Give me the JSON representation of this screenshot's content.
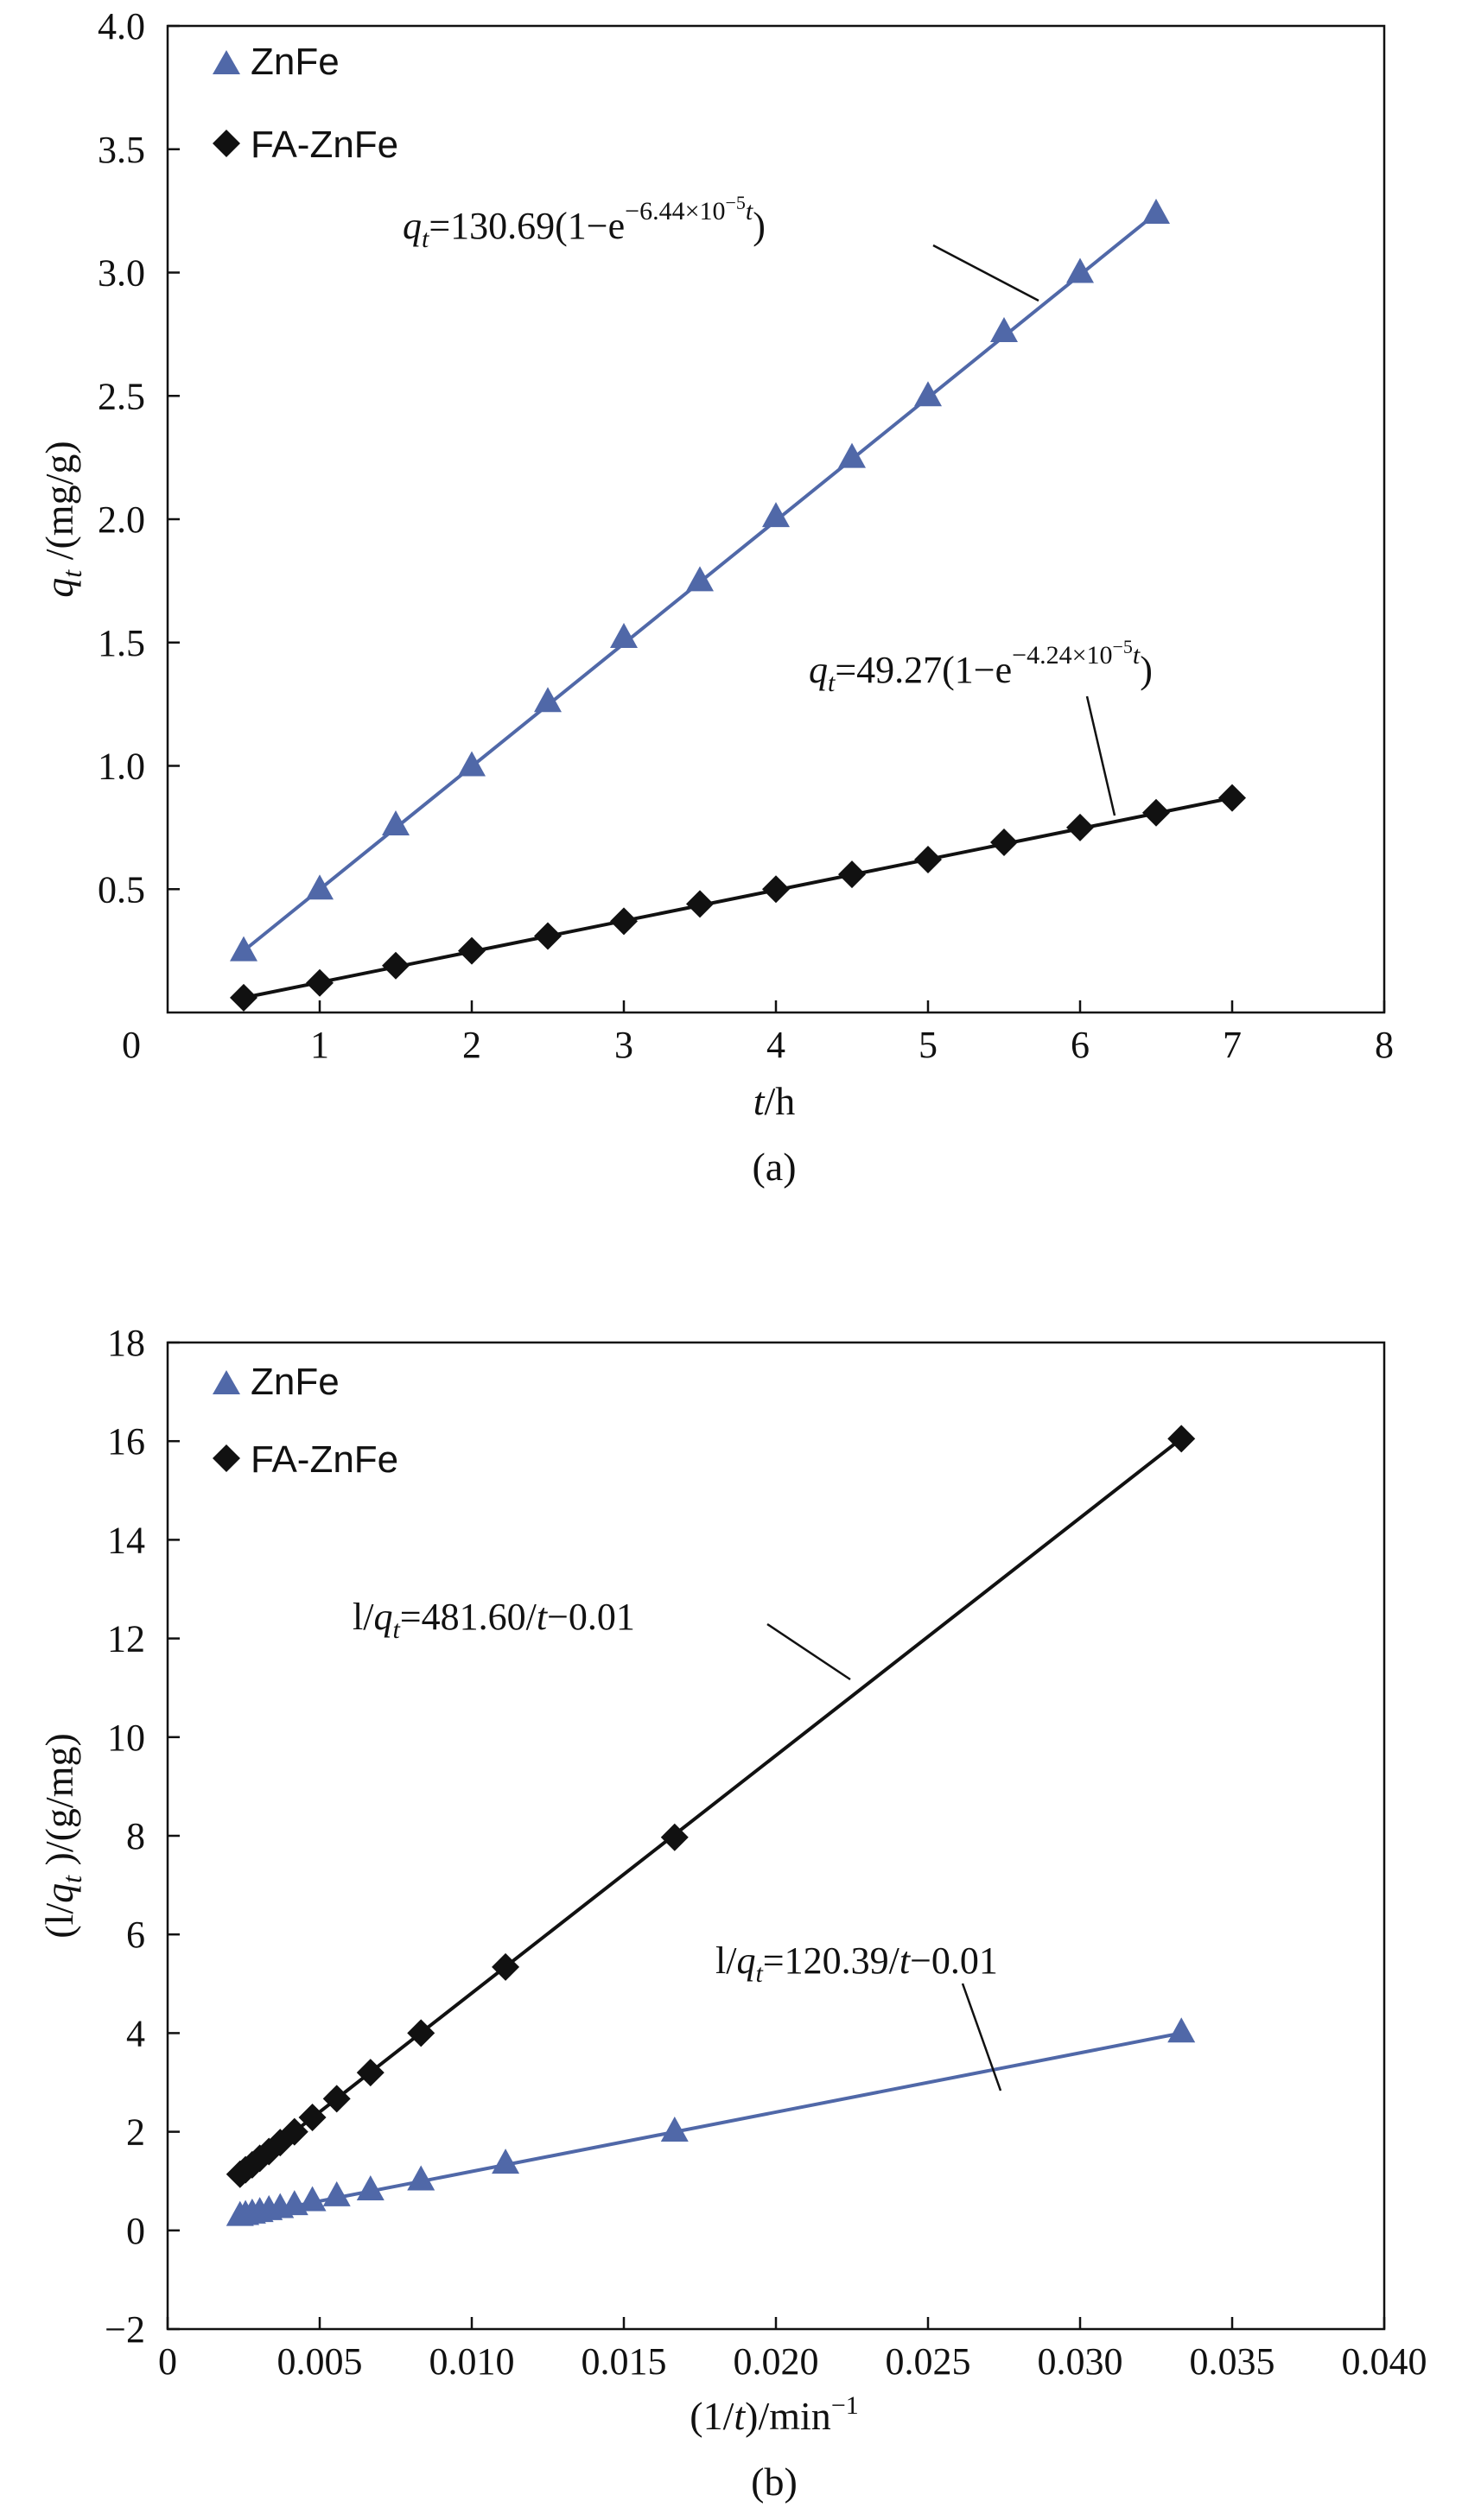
{
  "colors": {
    "znfe": "#5068a8",
    "fa_znfe": "#111111"
  },
  "chart_data": [
    {
      "type": "scatter",
      "panel_label": "(a)",
      "xlabel_italic": "t",
      "xlabel_rest": "/h",
      "ylabel_italic": "q",
      "ylabel_sub": "t",
      "ylabel_rest": " /(mg/g)",
      "xlim": [
        0,
        8
      ],
      "ylim": [
        0,
        4.0
      ],
      "xticks": [
        {
          "v": 1,
          "label": "1"
        },
        {
          "v": 2,
          "label": "2"
        },
        {
          "v": 3,
          "label": "3"
        },
        {
          "v": 4,
          "label": "4"
        },
        {
          "v": 5,
          "label": "5"
        },
        {
          "v": 6,
          "label": "6"
        },
        {
          "v": 7,
          "label": "7"
        },
        {
          "v": 8,
          "label": "8"
        }
      ],
      "yticks": [
        {
          "v": 0.5,
          "label": "0.5"
        },
        {
          "v": 1.0,
          "label": "1.0"
        },
        {
          "v": 1.5,
          "label": "1.5"
        },
        {
          "v": 2.0,
          "label": "2.0"
        },
        {
          "v": 2.5,
          "label": "2.5"
        },
        {
          "v": 3.0,
          "label": "3.0"
        },
        {
          "v": 3.5,
          "label": "3.5"
        },
        {
          "v": 4.0,
          "label": "4.0"
        }
      ],
      "origin_label": "0",
      "legend_position": "top-left",
      "series": [
        {
          "name": "ZnFe",
          "marker": "triangle",
          "color": "#5068a8",
          "x": [
            0.5,
            1,
            1.5,
            2,
            2.5,
            3,
            3.5,
            4,
            4.5,
            5,
            5.5,
            6,
            6.5
          ],
          "y": [
            0.25,
            0.5,
            0.76,
            1.0,
            1.26,
            1.52,
            1.75,
            2.01,
            2.25,
            2.5,
            2.76,
            3.0,
            3.24
          ],
          "fit": [
            [
              0.5,
              0.25
            ],
            [
              6.5,
              3.24
            ]
          ]
        },
        {
          "name": "FA-ZnFe",
          "marker": "diamond",
          "color": "#111111",
          "x": [
            0.5,
            1,
            1.5,
            2,
            2.5,
            3,
            3.5,
            4,
            4.5,
            5,
            5.5,
            6,
            6.5,
            7
          ],
          "y": [
            0.06,
            0.12,
            0.19,
            0.25,
            0.31,
            0.37,
            0.44,
            0.5,
            0.56,
            0.62,
            0.69,
            0.75,
            0.81,
            0.87
          ],
          "fit": [
            [
              0.5,
              0.06
            ],
            [
              7,
              0.87
            ]
          ]
        }
      ],
      "annotations": [
        {
          "italic_var": "q",
          "sub": "t",
          "main": "=130.69(1−e",
          "sup": "−6.44×10",
          "supsup": "−5",
          "sup_tail": "t",
          "close": ")"
        },
        {
          "italic_var": "q",
          "sub": "t",
          "main": "=49.27(1−e",
          "sup": "−4.24×10",
          "supsup": "−5",
          "sup_tail": "t",
          "close": ")"
        }
      ]
    },
    {
      "type": "scatter",
      "panel_label": "(b)",
      "xlabel_pre": "(1/",
      "xlabel_italic": "t",
      "xlabel_rest": ")/min",
      "xlabel_sup": "−1",
      "ylabel_pre": "(l/",
      "ylabel_italic": "q",
      "ylabel_sub": "t",
      "ylabel_rest": " )/(g/mg)",
      "xlim": [
        0,
        0.04
      ],
      "ylim": [
        -2,
        18
      ],
      "xticks": [
        {
          "v": 0,
          "label": "0"
        },
        {
          "v": 0.005,
          "label": "0.005"
        },
        {
          "v": 0.01,
          "label": "0.010"
        },
        {
          "v": 0.015,
          "label": "0.015"
        },
        {
          "v": 0.02,
          "label": "0.020"
        },
        {
          "v": 0.025,
          "label": "0.025"
        },
        {
          "v": 0.03,
          "label": "0.030"
        },
        {
          "v": 0.035,
          "label": "0.035"
        },
        {
          "v": 0.04,
          "label": "0.040"
        }
      ],
      "yticks": [
        {
          "v": -2,
          "label": "−2"
        },
        {
          "v": 0,
          "label": "0"
        },
        {
          "v": 2,
          "label": "2"
        },
        {
          "v": 4,
          "label": "4"
        },
        {
          "v": 6,
          "label": "6"
        },
        {
          "v": 8,
          "label": "8"
        },
        {
          "v": 10,
          "label": "10"
        },
        {
          "v": 12,
          "label": "12"
        },
        {
          "v": 14,
          "label": "14"
        },
        {
          "v": 16,
          "label": "16"
        },
        {
          "v": 18,
          "label": "18"
        }
      ],
      "legend_position": "top-left",
      "series": [
        {
          "name": "ZnFe",
          "marker": "triangle",
          "color": "#5068a8",
          "x": [
            0.00238,
            0.00256,
            0.00278,
            0.00303,
            0.00333,
            0.0037,
            0.00417,
            0.00476,
            0.00556,
            0.00667,
            0.00833,
            0.01111,
            0.01667,
            0.03333
          ],
          "y": [
            0.3,
            0.32,
            0.35,
            0.38,
            0.42,
            0.46,
            0.52,
            0.6,
            0.7,
            0.82,
            1.02,
            1.36,
            2.01,
            4.02
          ],
          "fit": [
            [
              0.00238,
              0.28
            ],
            [
              0.03333,
              4.0
            ]
          ]
        },
        {
          "name": "FA-ZnFe",
          "marker": "diamond",
          "color": "#111111",
          "x": [
            0.00238,
            0.00256,
            0.00278,
            0.00303,
            0.00333,
            0.0037,
            0.00417,
            0.00476,
            0.00556,
            0.00667,
            0.00833,
            0.01111,
            0.01667,
            0.03333
          ],
          "y": [
            1.14,
            1.23,
            1.33,
            1.46,
            1.6,
            1.78,
            2.0,
            2.29,
            2.67,
            3.2,
            4.0,
            5.34,
            7.97,
            16.05
          ],
          "fit": [
            [
              0.00238,
              1.14
            ],
            [
              0.03333,
              16.05
            ]
          ]
        }
      ],
      "annotations": [
        {
          "pre": "l/",
          "italic_var": "q",
          "sub": "t",
          "main": "=481.60/",
          "italic_t": "t",
          "tail": "−0.01"
        },
        {
          "pre": "l/",
          "italic_var": "q",
          "sub": "t",
          "main": "=120.39/",
          "italic_t": "t",
          "tail": "−0.01"
        }
      ]
    }
  ]
}
